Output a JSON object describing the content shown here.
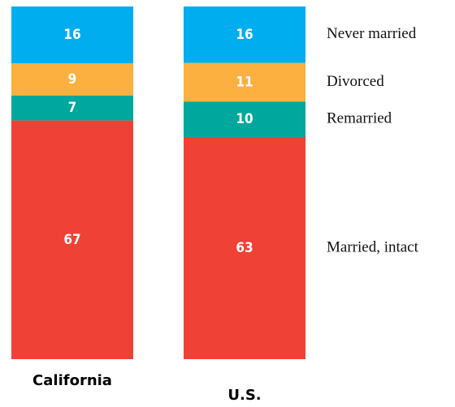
{
  "chart_data": {
    "type": "stacked_bar",
    "categories": [
      "California",
      "U.S."
    ],
    "series": [
      {
        "name": "Never married",
        "color": "#00aeef",
        "values": [
          16,
          16
        ]
      },
      {
        "name": "Divorced",
        "color": "#fbb040",
        "values": [
          9,
          11
        ]
      },
      {
        "name": "Remarried",
        "color": "#00a79d",
        "values": [
          7,
          10
        ]
      },
      {
        "name": "Married, intact",
        "color": "#ef4136",
        "values": [
          67,
          63
        ]
      }
    ]
  }
}
